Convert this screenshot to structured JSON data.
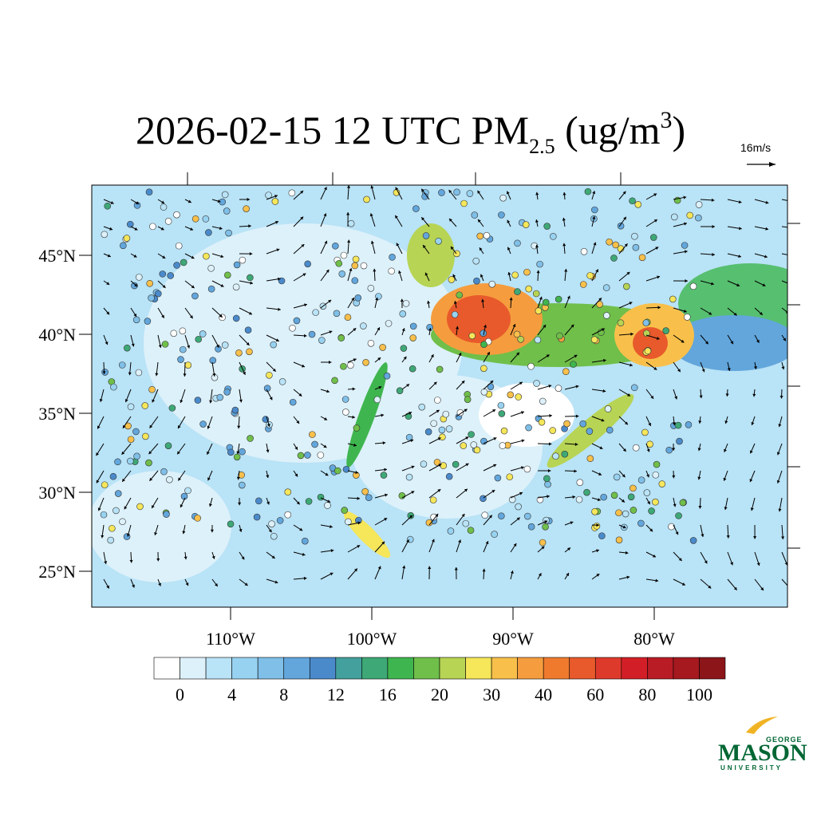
{
  "title": {
    "text": "2026-02-15 12 UTC PM",
    "subscript": "2.5",
    "unit": "(ug/m",
    "superscript": "3",
    "close": ")"
  },
  "reference_vector": "16m/s",
  "lat_ticks": [
    {
      "value": 45,
      "label": "45°N"
    },
    {
      "value": 40,
      "label": "40°N"
    },
    {
      "value": 35,
      "label": "35°N"
    },
    {
      "value": 30,
      "label": "30°N"
    },
    {
      "value": 25,
      "label": "25°N"
    }
  ],
  "lon_ticks": [
    {
      "value": -110,
      "label": "110°W"
    },
    {
      "value": -100,
      "label": "100°W"
    },
    {
      "value": -90,
      "label": "90°W"
    },
    {
      "value": -80,
      "label": "80°W"
    }
  ],
  "colorbar": {
    "colors": [
      "#ffffff",
      "#ddf1fa",
      "#b9e3f6",
      "#98d2f1",
      "#7fbfe8",
      "#62a6dc",
      "#4a8acb",
      "#43a09c",
      "#3ea877",
      "#3fb54f",
      "#6fbf4a",
      "#b7d454",
      "#f5e65a",
      "#f8c04b",
      "#f59d3e",
      "#ef7a2e",
      "#e85a2b",
      "#de3a2c",
      "#d21f27",
      "#b91c24",
      "#a5191f",
      "#8b1519"
    ],
    "ticks": [
      0,
      4,
      8,
      12,
      16,
      20,
      30,
      40,
      60,
      80,
      100
    ]
  },
  "logo": {
    "top": "GEORGE",
    "main": "MASON",
    "bottom": "UNIVERSITY"
  }
}
